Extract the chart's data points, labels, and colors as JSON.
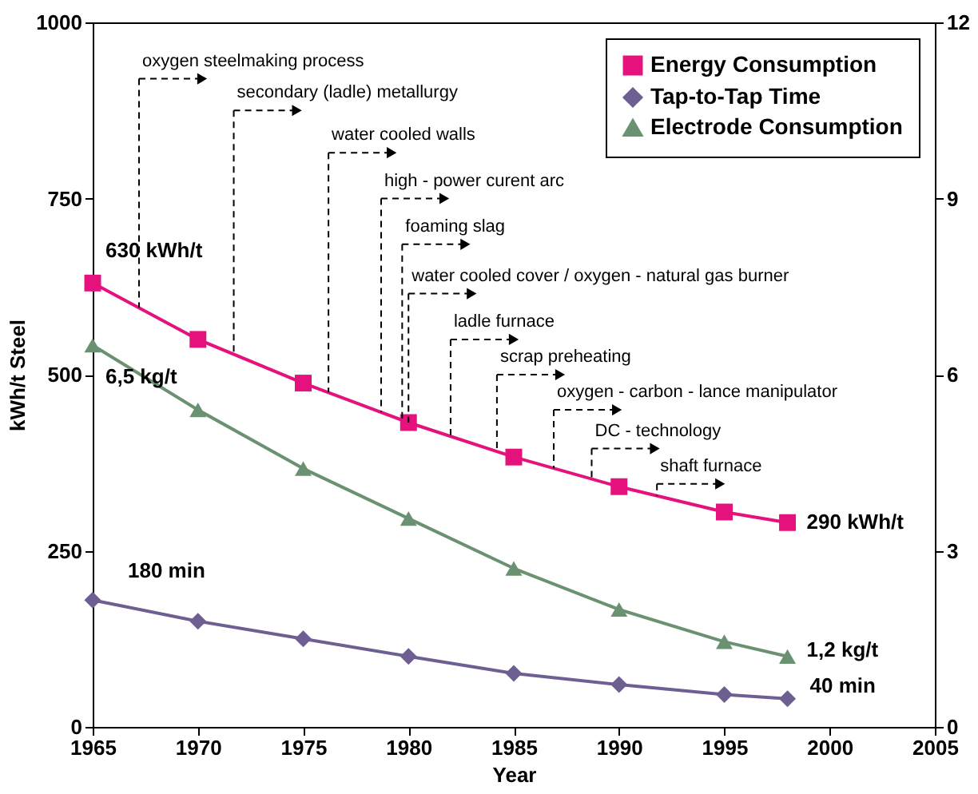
{
  "chart_data": {
    "type": "line",
    "xlabel": "Year",
    "ylabel": "kWh/t Steel",
    "x": [
      1965,
      1970,
      1975,
      1980,
      1985,
      1990,
      1995,
      1998
    ],
    "xlim": [
      1965,
      2005
    ],
    "xticks": [
      1965,
      1970,
      1975,
      1980,
      1985,
      1990,
      1995,
      2000,
      2005
    ],
    "ylim": [
      0,
      1000
    ],
    "yticks": [
      0,
      250,
      500,
      750,
      1000
    ],
    "y2lim": [
      0,
      12
    ],
    "y2ticks": [
      0,
      3,
      6,
      9,
      12
    ],
    "grid": false,
    "legend": "top right",
    "line_style": "solid",
    "series": [
      {
        "name": "Energy Consumption",
        "color": "#e5127d",
        "marker": "square",
        "values": [
          630,
          550,
          488,
          432,
          383,
          341,
          305,
          290
        ],
        "value_labels": [
          "630 kWh/t",
          null,
          null,
          null,
          null,
          null,
          null,
          "290 kWh/t"
        ]
      },
      {
        "name": "Tap-to-Tap Time",
        "color": "#6e5f93",
        "marker": "diamond",
        "values": [
          180,
          150,
          125,
          100,
          76,
          60,
          46,
          40
        ],
        "value_labels": [
          "180 min",
          null,
          null,
          null,
          null,
          null,
          null,
          "40 min"
        ]
      },
      {
        "name": "Electrode Consumption",
        "color": "#6a9272",
        "marker": "triangle",
        "axis": "y2",
        "values": [
          6.5,
          5.4,
          4.4,
          3.55,
          2.7,
          2.0,
          1.45,
          1.2
        ],
        "value_labels": [
          "6,5 kg/t",
          null,
          null,
          null,
          null,
          null,
          null,
          "1,2 kg/t"
        ]
      }
    ],
    "annotations": [
      {
        "text": "oxygen steelmaking process",
        "x": 1967.2,
        "y": 595
      },
      {
        "text": "secondary (ladle) metallurgy",
        "x": 1971.7,
        "y": 529
      },
      {
        "text": "water cooled walls",
        "x": 1976.2,
        "y": 475
      },
      {
        "text": "high - power curent arc",
        "x": 1978.7,
        "y": 447
      },
      {
        "text": "foaming slag",
        "x": 1979.7,
        "y": 435
      },
      {
        "text": "water cooled cover / oxygen - natural gas burner",
        "x": 1980.0,
        "y": 432
      },
      {
        "text": "ladle furnace",
        "x": 1982.0,
        "y": 412
      },
      {
        "text": "scrap preheating",
        "x": 1984.2,
        "y": 391
      },
      {
        "text": "oxygen - carbon - lance manipulator",
        "x": 1986.9,
        "y": 367
      },
      {
        "text": "DC - technology",
        "x": 1988.7,
        "y": 352
      },
      {
        "text": "shaft furnace",
        "x": 1991.8,
        "y": 328
      }
    ]
  }
}
